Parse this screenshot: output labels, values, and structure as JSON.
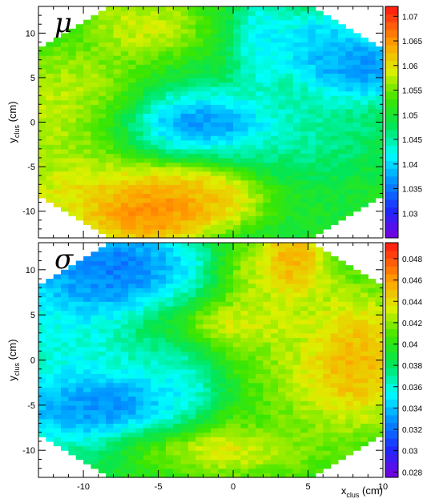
{
  "chart_data": [
    {
      "type": "heatmap",
      "title": "μ",
      "xlabel": "",
      "ylabel": "y",
      "ylabel_sub": "clus",
      "ylabel_unit": " (cm)",
      "xlim": [
        -13,
        10
      ],
      "ylim": [
        -13,
        13
      ],
      "yticks": [
        -10,
        -5,
        0,
        5,
        10
      ],
      "colorbar": {
        "min": 1.025,
        "max": 1.072,
        "ticks": [
          1.03,
          1.035,
          1.04,
          1.045,
          1.05,
          1.055,
          1.06,
          1.065,
          1.07
        ]
      },
      "blobs": [
        {
          "x": -6,
          "y": -10,
          "value": 1.07,
          "sx": 2.2,
          "sy": 1.8
        },
        {
          "x": -3,
          "y": -8.5,
          "value": 1.065,
          "sx": 2.5,
          "sy": 2
        },
        {
          "x": -9,
          "y": -8,
          "value": 1.062,
          "sx": 3,
          "sy": 2
        },
        {
          "x": -2,
          "y": 0,
          "value": 1.032,
          "sx": 2,
          "sy": 1
        },
        {
          "x": -2,
          "y": 0,
          "value": 1.038,
          "sx": 4,
          "sy": 2.2
        },
        {
          "x": 2,
          "y": 9,
          "value": 1.04,
          "sx": 1,
          "sy": 3
        },
        {
          "x": 8,
          "y": 6,
          "value": 1.033,
          "sx": 2,
          "sy": 2
        },
        {
          "x": 6,
          "y": 9,
          "value": 1.038,
          "sx": 2,
          "sy": 2
        },
        {
          "x": -6,
          "y": 11,
          "value": 1.06,
          "sx": 2,
          "sy": 2
        },
        {
          "x": -11,
          "y": 1,
          "value": 1.06,
          "sx": 3,
          "sy": 4
        },
        {
          "x": 5,
          "y": 0,
          "value": 1.045,
          "sx": 2.5,
          "sy": 3
        }
      ],
      "base_value": 1.05
    },
    {
      "type": "heatmap",
      "title": "σ",
      "xlabel": "x",
      "xlabel_sub": "clus",
      "xlabel_unit": " (cm)",
      "ylabel": "y",
      "ylabel_sub": "clus",
      "ylabel_unit": " (cm)",
      "xlim": [
        -13,
        10
      ],
      "ylim": [
        -13,
        13
      ],
      "xticks": [
        -10,
        -5,
        0,
        5,
        10
      ],
      "yticks": [
        -10,
        -5,
        0,
        5,
        10
      ],
      "colorbar": {
        "min": 0.0275,
        "max": 0.0495,
        "ticks": [
          0.028,
          0.03,
          0.032,
          0.034,
          0.036,
          0.038,
          0.04,
          0.042,
          0.044,
          0.046,
          0.048
        ]
      },
      "blobs": [
        {
          "x": 8,
          "y": 0,
          "value": 0.048,
          "sx": 1.6,
          "sy": 3
        },
        {
          "x": 7,
          "y": 0,
          "value": 0.044,
          "sx": 3,
          "sy": 5
        },
        {
          "x": 4,
          "y": 11,
          "value": 0.048,
          "sx": 1,
          "sy": 2
        },
        {
          "x": 3,
          "y": 9,
          "value": 0.044,
          "sx": 2,
          "sy": 3
        },
        {
          "x": -1,
          "y": 4,
          "value": 0.046,
          "sx": 2.5,
          "sy": 1.2
        },
        {
          "x": -1,
          "y": 4,
          "value": 0.042,
          "sx": 4,
          "sy": 2.5
        },
        {
          "x": -1,
          "y": -10,
          "value": 0.046,
          "sx": 2.5,
          "sy": 1.2
        },
        {
          "x": -1,
          "y": -10,
          "value": 0.042,
          "sx": 4,
          "sy": 2.5
        },
        {
          "x": -8,
          "y": 9,
          "value": 0.03,
          "sx": 3,
          "sy": 3
        },
        {
          "x": -9,
          "y": -5,
          "value": 0.03,
          "sx": 3,
          "sy": 2
        },
        {
          "x": -10,
          "y": 0,
          "value": 0.035,
          "sx": 3,
          "sy": 6
        },
        {
          "x": -4,
          "y": 1,
          "value": 0.035,
          "sx": 1.5,
          "sy": 6
        }
      ],
      "base_value": 0.039
    }
  ]
}
